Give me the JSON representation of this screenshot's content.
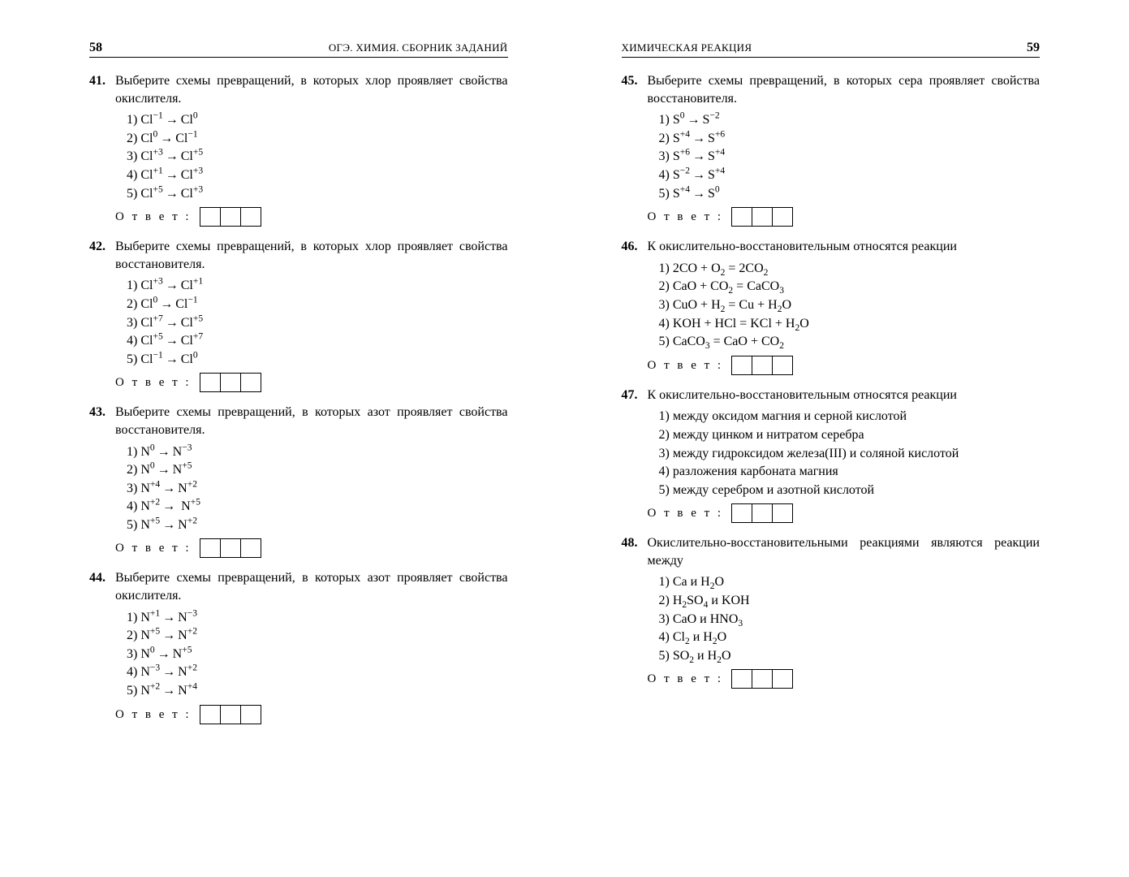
{
  "text_color": "#000000",
  "background_color": "#ffffff",
  "font_family": "Times New Roman",
  "body_fontsize": 16,
  "header_fontsize": 13,
  "pagenum_fontsize": 16,
  "answer_label": "О т в е т :",
  "answer_box_count": 3,
  "left": {
    "page_number": "58",
    "header": "ОГЭ. ХИМИЯ. СБОРНИК ЗАДАНИЙ",
    "problems": [
      {
        "num": "41.",
        "text": "Выберите схемы превращений, в которых хлор проявляет свойства окислителя.",
        "options": [
          "1) Cl⁻¹ → Cl⁰",
          "2) Cl⁰ → Cl⁻¹",
          "3) Cl⁺³ → Cl⁺⁵",
          "4) Cl⁺¹ → Cl⁺³",
          "5) Cl⁺⁵ → Cl⁺³"
        ]
      },
      {
        "num": "42.",
        "text": "Выберите схемы превращений, в которых хлор проявляет свойства восстановителя.",
        "options": [
          "1) Cl⁺³ → Cl⁺¹",
          "2) Cl⁰ → Cl⁻¹",
          "3) Cl⁺⁷ → Cl⁺⁵",
          "4) Cl⁺⁵ → Cl⁺⁷",
          "5) Cl⁻¹ → Cl⁰"
        ]
      },
      {
        "num": "43.",
        "text": "Выберите схемы превращений, в которых азот проявляет свойства восстановителя.",
        "options": [
          "1) N⁰ → N⁻³",
          "2) N⁰ → N⁺⁵",
          "3) N⁺⁴ → N⁺²",
          "4) N⁺² →  N⁺⁵",
          "5) N⁺⁵ → N⁺²"
        ]
      },
      {
        "num": "44.",
        "text": "Выберите схемы превращений, в которых азот проявляет свойства окислителя.",
        "options": [
          "1) N⁺¹ → N⁻³",
          "2) N⁺⁵ → N⁺²",
          "3) N⁰ → N⁺⁵",
          "4) N⁻³ → N⁺²",
          "5) N⁺² → N⁺⁴"
        ]
      }
    ]
  },
  "right": {
    "page_number": "59",
    "header": "ХИМИЧЕСКАЯ РЕАКЦИЯ",
    "problems": [
      {
        "num": "45.",
        "text": "Выберите схемы превращений, в которых сера проявляет свойства восстановителя.",
        "options": [
          "1) S⁰ → S⁻²",
          "2) S⁺⁴ → S⁺⁶",
          "3) S⁺⁶ → S⁺⁴",
          "4) S⁻² → S⁺⁴",
          "5) S⁺⁴ → S⁰"
        ]
      },
      {
        "num": "46.",
        "text": "К окислительно-восстановительным относятся реакции",
        "options": [
          "1) 2CO + O₂ = 2CO₂",
          "2) CaO + CO₂ = CaCO₃",
          "3) CuO + H₂ = Cu + H₂O",
          "4) KOH + HCl = KCl + H₂O",
          "5) CaCO₃ = CaO + CO₂"
        ]
      },
      {
        "num": "47.",
        "text": "К окислительно-восстановительным относятся реакции",
        "options": [
          "1) между оксидом магния и серной кислотой",
          "2) между цинком и нитратом серебра",
          "3) между гидроксидом железа(III) и соляной кислотой",
          "4) разложения карбоната магния",
          "5) между серебром и азотной кислотой"
        ]
      },
      {
        "num": "48.",
        "text": "Окислительно-восстановительными реакциями являются реакции между",
        "options": [
          "1) Ca и H₂O",
          "2) H₂SO₄ и KOH",
          "3) CaO и HNO₃",
          "4) Cl₂ и H₂O",
          "5) SO₂ и H₂O"
        ]
      }
    ]
  }
}
